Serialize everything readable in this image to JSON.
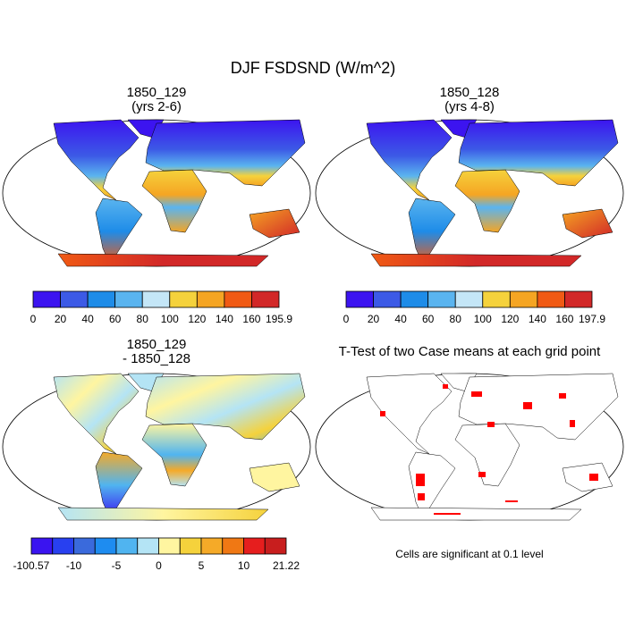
{
  "title": "DJF FSDSND (W/m^2)",
  "panels": [
    {
      "title": [
        "1850_129",
        "(yrs 2-6)"
      ],
      "colorbar": {
        "colors": [
          "#3c14f0",
          "#3c5ae6",
          "#1e8ce8",
          "#5ab4ef",
          "#c4e6f7",
          "#f5d23c",
          "#f5a523",
          "#f05a14",
          "#d22828"
        ],
        "labels": [
          0,
          20,
          40,
          60,
          80,
          100,
          120,
          140,
          160,
          195.9
        ]
      }
    },
    {
      "title": [
        "1850_128",
        "(yrs 4-8)"
      ],
      "colorbar": {
        "colors": [
          "#3c14f0",
          "#3c5ae6",
          "#1e8ce8",
          "#5ab4ef",
          "#c4e6f7",
          "#f5d23c",
          "#f5a523",
          "#f05a14",
          "#d22828"
        ],
        "labels": [
          0,
          20,
          40,
          60,
          80,
          100,
          120,
          140,
          160,
          197.9
        ]
      }
    },
    {
      "title": [
        "1850_129",
        "- 1850_128"
      ],
      "colorbar": {
        "colors": [
          "#3a14f0",
          "#2840f0",
          "#3a6adc",
          "#1e8cf0",
          "#50b4f0",
          "#b4e4f5",
          "#fff5a0",
          "#f5d23c",
          "#f5aa28",
          "#f07814",
          "#e61e1e",
          "#c81e1e"
        ],
        "labels": [
          -100.57,
          null,
          -10,
          null,
          -5,
          null,
          0,
          null,
          5,
          null,
          10,
          null,
          21.22
        ]
      }
    },
    {
      "title": [
        "T-Test of two Case means at each grid point"
      ],
      "note": "Cells are significant at 0.1 level"
    }
  ]
}
